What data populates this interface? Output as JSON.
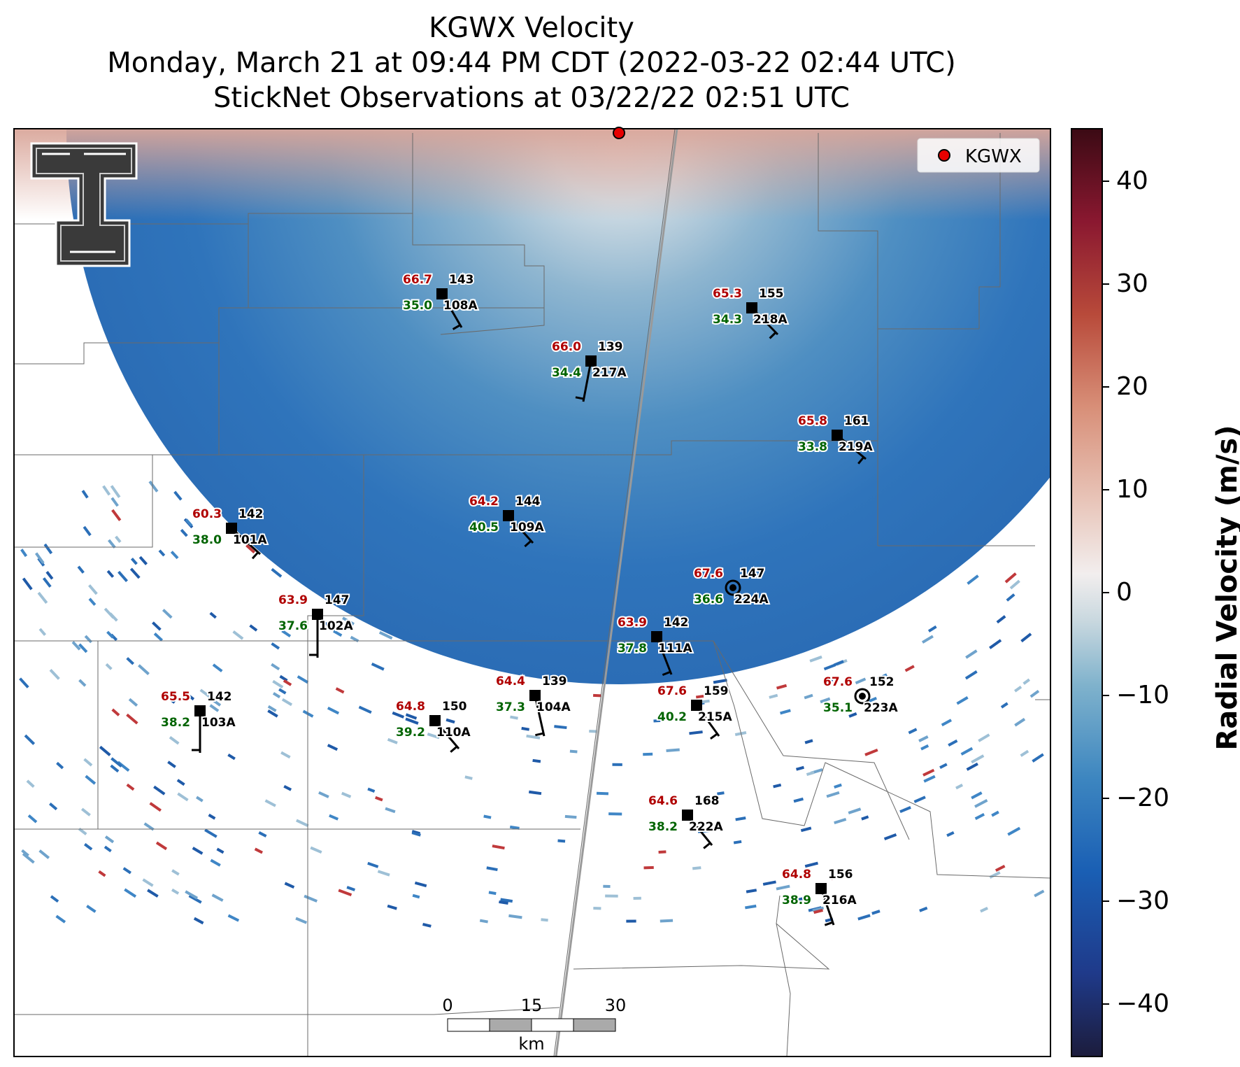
{
  "title": {
    "line1": "KGWX Velocity",
    "line2": "Monday, March 21 at 09:44 PM CDT (2022-03-22 02:44 UTC)",
    "line3": "StickNet Observations at 03/22/22 02:51 UTC"
  },
  "legend": {
    "marker_label": "KGWX",
    "marker_color": "#e60000"
  },
  "colorbar": {
    "label": "Radial Velocity (m/s)",
    "ticks": [
      "40",
      "30",
      "20",
      "10",
      "0",
      "−10",
      "−20",
      "−30",
      "−40"
    ],
    "range": [
      -45,
      45
    ],
    "colormap": [
      "#1c1c3c",
      "#1f3a8a",
      "#1a5fb4",
      "#3d86c0",
      "#7fb2cc",
      "#c9d8df",
      "#f2eeee",
      "#e8c4b8",
      "#d88f78",
      "#b84a3a",
      "#8a1830",
      "#3b0a14"
    ]
  },
  "scale_bar": {
    "ticks": [
      "0",
      "15",
      "30"
    ],
    "unit": "km"
  },
  "colors": {
    "temperature": "#b00000",
    "dewpoint": "#006400",
    "station_text": "#000000",
    "velocity_outbound": "#d88f78",
    "velocity_inbound": "#2b6fb8"
  },
  "stations": [
    {
      "id": "108A",
      "temp": "66.7",
      "dew": "35.0",
      "pressure": "143",
      "marker": "square"
    },
    {
      "id": "218A",
      "temp": "65.3",
      "dew": "34.3",
      "pressure": "155",
      "marker": "square"
    },
    {
      "id": "217A",
      "temp": "66.0",
      "dew": "34.4",
      "pressure": "139",
      "marker": "square"
    },
    {
      "id": "219A",
      "temp": "65.8",
      "dew": "33.8",
      "pressure": "161",
      "marker": "square"
    },
    {
      "id": "101A",
      "temp": "60.3",
      "dew": "38.0",
      "pressure": "142",
      "marker": "square"
    },
    {
      "id": "109A",
      "temp": "64.2",
      "dew": "40.5",
      "pressure": "144",
      "marker": "square"
    },
    {
      "id": "224A",
      "temp": "67.6",
      "dew": "36.6",
      "pressure": "147",
      "marker": "circle"
    },
    {
      "id": "102A",
      "temp": "63.9",
      "dew": "37.6",
      "pressure": "147",
      "marker": "square"
    },
    {
      "id": "111A",
      "temp": "63.9",
      "dew": "37.8",
      "pressure": "142",
      "marker": "square"
    },
    {
      "id": "104A",
      "temp": "64.4",
      "dew": "37.3",
      "pressure": "139",
      "marker": "square"
    },
    {
      "id": "215A",
      "temp": "67.6",
      "dew": "40.2",
      "pressure": "159",
      "marker": "square"
    },
    {
      "id": "223A",
      "temp": "67.6",
      "dew": "35.1",
      "pressure": "152",
      "marker": "circle"
    },
    {
      "id": "103A",
      "temp": "65.5",
      "dew": "38.2",
      "pressure": "142",
      "marker": "square"
    },
    {
      "id": "110A",
      "temp": "64.8",
      "dew": "39.2",
      "pressure": "150",
      "marker": "square"
    },
    {
      "id": "222A",
      "temp": "64.6",
      "dew": "38.2",
      "pressure": "168",
      "marker": "square"
    },
    {
      "id": "216A",
      "temp": "64.8",
      "dew": "38.9",
      "pressure": "156",
      "marker": "square"
    }
  ]
}
